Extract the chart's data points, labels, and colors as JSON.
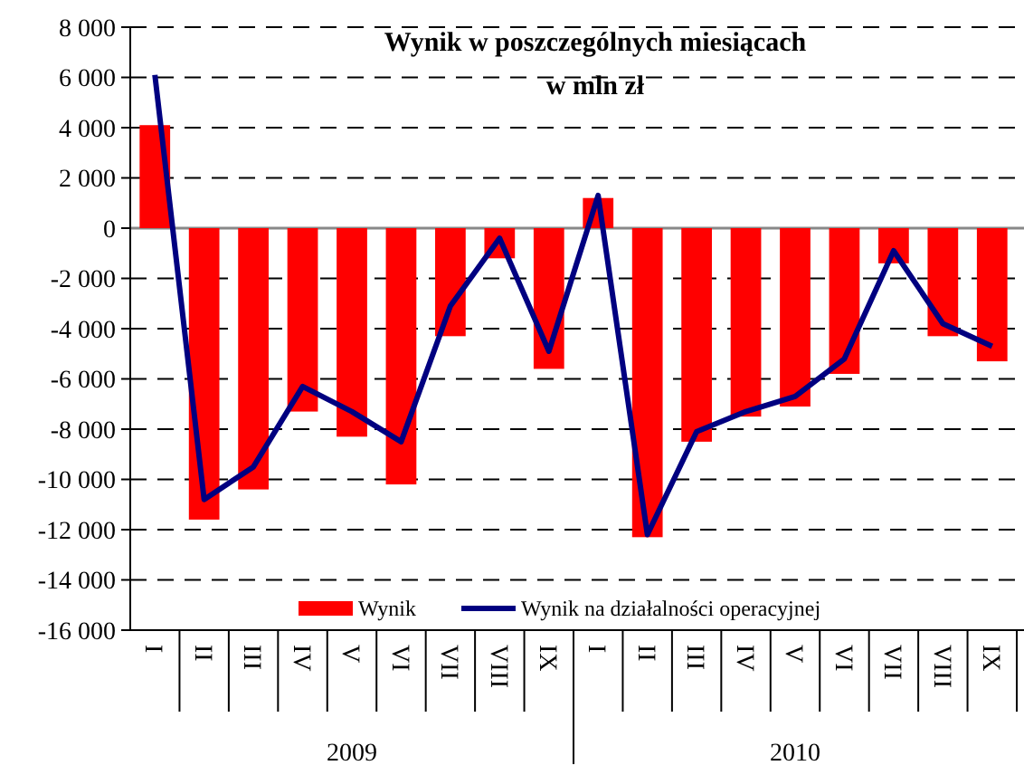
{
  "chart_data": {
    "type": "bar",
    "title": "Wynik w poszczególnych miesiącach",
    "subtitle": "w mln zł",
    "categories": [
      "I",
      "II",
      "III",
      "IV",
      "V",
      "VI",
      "VII",
      "VIII",
      "IX",
      "I",
      "II",
      "III",
      "IV",
      "V",
      "VI",
      "VII",
      "VIII",
      "IX"
    ],
    "series": [
      {
        "name": "Wynik",
        "color": "#ff0000",
        "values": [
          4100,
          -11600,
          -10400,
          -7300,
          -8300,
          -10200,
          -4300,
          -1200,
          -5600,
          1200,
          -12300,
          -8500,
          -7500,
          -7100,
          -5800,
          -1400,
          -4300,
          -5300
        ]
      },
      {
        "name": "Wynik na działalności operacyjnej",
        "type": "line",
        "color": "#000080",
        "values": [
          6100,
          -10800,
          -9500,
          -6300,
          -7300,
          -8500,
          -3100,
          -400,
          -4900,
          1300,
          -12200,
          -8100,
          -7300,
          -6700,
          -5200,
          -900,
          -3800,
          -4700
        ]
      }
    ],
    "annotations": [
      "2009",
      "2010"
    ],
    "ylim": [
      -16000,
      8000
    ],
    "yticks": [
      {
        "value": -16000,
        "label": "-16 000"
      },
      {
        "value": -14000,
        "label": "-14 000"
      },
      {
        "value": -12000,
        "label": "-12 000"
      },
      {
        "value": -10000,
        "label": "-10 000"
      },
      {
        "value": -8000,
        "label": "-8 000"
      },
      {
        "value": -6000,
        "label": "-6 000"
      },
      {
        "value": -4000,
        "label": "-4 000"
      },
      {
        "value": -2000,
        "label": "-2 000"
      },
      0,
      {
        "value": 2000,
        "label": "2 000"
      },
      {
        "value": 4000,
        "label": "4 000"
      },
      {
        "value": 6000,
        "label": "6 000"
      },
      {
        "value": 8000,
        "label": "8 000"
      }
    ],
    "grid": "y",
    "line_style": "solid",
    "marker": "none",
    "legend": "bottom"
  }
}
